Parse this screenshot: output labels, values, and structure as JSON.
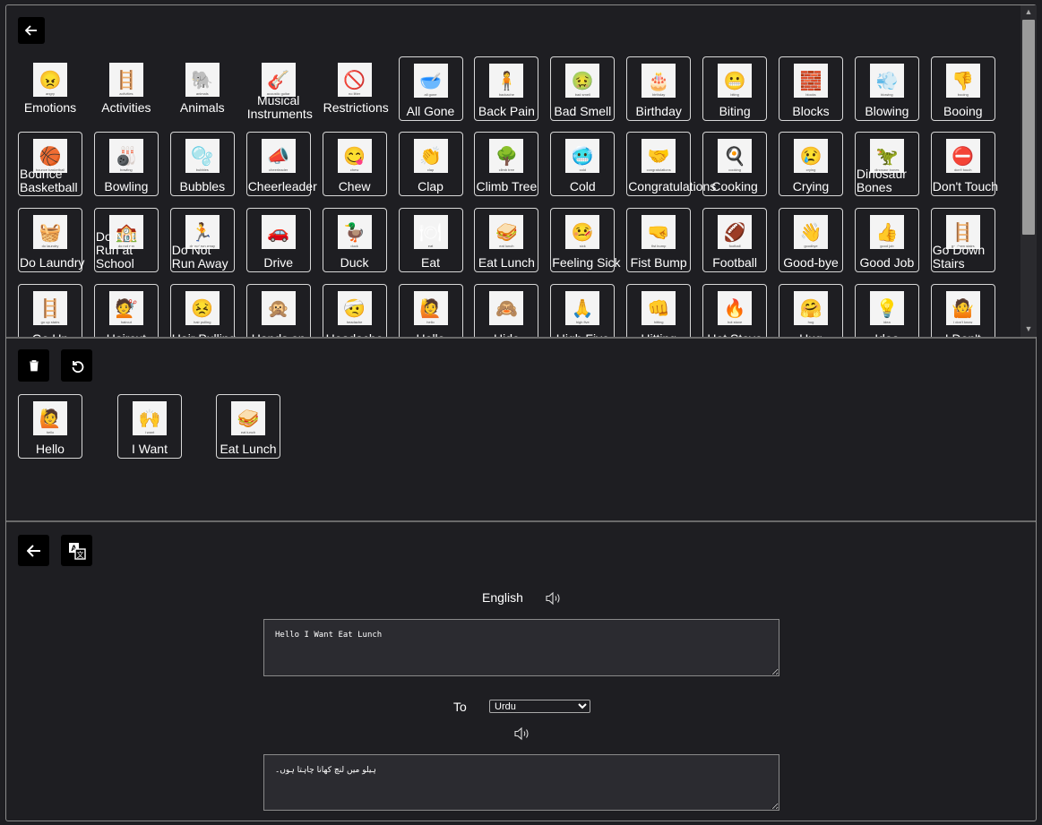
{
  "vocab": {
    "categories": [
      {
        "label": "Emotions",
        "cap": "angry",
        "icon": "😠"
      },
      {
        "label": "Activities",
        "cap": "activities",
        "icon": "🪜"
      },
      {
        "label": "Animals",
        "cap": "animals",
        "icon": "🐘"
      },
      {
        "label": "Musical Instruments",
        "cap": "acoustic guitar",
        "icon": "🎸"
      },
      {
        "label": "Restrictions",
        "cap": "no litter",
        "icon": "🚫"
      }
    ],
    "row1": [
      {
        "label": "All Gone",
        "cap": "all gone",
        "icon": "🥣"
      },
      {
        "label": "Back Pain",
        "cap": "backache",
        "icon": "🧍"
      },
      {
        "label": "Bad Smell",
        "cap": "bad smell",
        "icon": "🤢"
      },
      {
        "label": "Birthday",
        "cap": "birthday",
        "icon": "🎂"
      },
      {
        "label": "Biting",
        "cap": "biting",
        "icon": "😬"
      },
      {
        "label": "Blocks",
        "cap": "blocks",
        "icon": "🧱"
      },
      {
        "label": "Blowing",
        "cap": "blowing",
        "icon": "💨"
      },
      {
        "label": "Booing",
        "cap": "booing",
        "icon": "👎"
      }
    ],
    "row2": [
      {
        "label": "Bounce Basketball",
        "cap": "bounce basketball",
        "icon": "🏀"
      },
      {
        "label": "Bowling",
        "cap": "bowling",
        "icon": "🎳"
      },
      {
        "label": "Bubbles",
        "cap": "bubbles",
        "icon": "🫧"
      },
      {
        "label": "Cheerleader",
        "cap": "cheerleader",
        "icon": "📣"
      },
      {
        "label": "Chew",
        "cap": "chew",
        "icon": "😋"
      },
      {
        "label": "Clap",
        "cap": "clap",
        "icon": "👏"
      },
      {
        "label": "Climb Tree",
        "cap": "climb tree",
        "icon": "🌳"
      },
      {
        "label": "Cold",
        "cap": "cold",
        "icon": "🥶"
      },
      {
        "label": "Congratulations",
        "cap": "congratulations",
        "icon": "🤝"
      },
      {
        "label": "Cooking",
        "cap": "cooking",
        "icon": "🍳"
      },
      {
        "label": "Crying",
        "cap": "crying",
        "icon": "😢"
      },
      {
        "label": "Dinosaur Bones",
        "cap": "dinosaur bones",
        "icon": "🦖"
      },
      {
        "label": "Don't Touch",
        "cap": "don't touch",
        "icon": "⛔"
      }
    ],
    "row3": [
      {
        "label": "Do Laundry",
        "cap": "do laundry",
        "icon": "🧺"
      },
      {
        "label": "Do Not Run at School",
        "cap": "do not run",
        "icon": "🏫"
      },
      {
        "label": "Do Not Run Away",
        "cap": "do not run away",
        "icon": "🏃"
      },
      {
        "label": "Drive",
        "cap": "",
        "icon": "🚗"
      },
      {
        "label": "Duck",
        "cap": "duck",
        "icon": "🦆"
      },
      {
        "label": "Eat",
        "cap": "eat",
        "icon": "🍽"
      },
      {
        "label": "Eat Lunch",
        "cap": "eat lunch",
        "icon": "🥪"
      },
      {
        "label": "Feeling Sick",
        "cap": "sick",
        "icon": "🤒"
      },
      {
        "label": "Fist Bump",
        "cap": "fist bump",
        "icon": "🤜"
      },
      {
        "label": "Football",
        "cap": "football",
        "icon": "🏈"
      },
      {
        "label": "Good-bye",
        "cap": "goodbye",
        "icon": "👋"
      },
      {
        "label": "Good Job",
        "cap": "good job",
        "icon": "👍"
      },
      {
        "label": "Go Down Stairs",
        "cap": "go down stairs",
        "icon": "🪜"
      }
    ],
    "row4": [
      {
        "label": "Go Up",
        "cap": "go up stairs",
        "icon": "🪜"
      },
      {
        "label": "Haircut",
        "cap": "haircut",
        "icon": "💇"
      },
      {
        "label": "Hair Pulling",
        "cap": "hair pulling",
        "icon": "😣"
      },
      {
        "label": "Hands on",
        "cap": "",
        "icon": "🙊"
      },
      {
        "label": "Headache",
        "cap": "headache",
        "icon": "🤕"
      },
      {
        "label": "Hello",
        "cap": "hello",
        "icon": "🙋"
      },
      {
        "label": "Hide",
        "cap": "",
        "icon": "🙈"
      },
      {
        "label": "High Five",
        "cap": "high five",
        "icon": "🙏"
      },
      {
        "label": "Hitting",
        "cap": "hitting",
        "icon": "👊"
      },
      {
        "label": "Hot Stove",
        "cap": "hot stove",
        "icon": "🔥"
      },
      {
        "label": "Hug",
        "cap": "hug",
        "icon": "🤗"
      },
      {
        "label": "Idea",
        "cap": "idea",
        "icon": "💡"
      },
      {
        "label": "I Don't",
        "cap": "i don't know",
        "icon": "🤷"
      }
    ]
  },
  "sentence": [
    {
      "label": "Hello",
      "cap": "hello",
      "icon": "🙋"
    },
    {
      "label": "I Want",
      "cap": "i want",
      "icon": "🙌"
    },
    {
      "label": "Eat Lunch",
      "cap": "eat lunch",
      "icon": "🥪"
    }
  ],
  "translate": {
    "source_lang": "English",
    "source_text": "Hello I Want Eat Lunch",
    "to_label": "To",
    "target_lang": "Urdu",
    "target_text": "ہیلو میں لنچ کھانا چاہتا ہوں۔"
  },
  "icons": {
    "back": "arrow-left-icon",
    "delete": "trash-icon",
    "undo": "undo-icon",
    "translate": "translate-icon",
    "speaker": "speaker-icon"
  }
}
